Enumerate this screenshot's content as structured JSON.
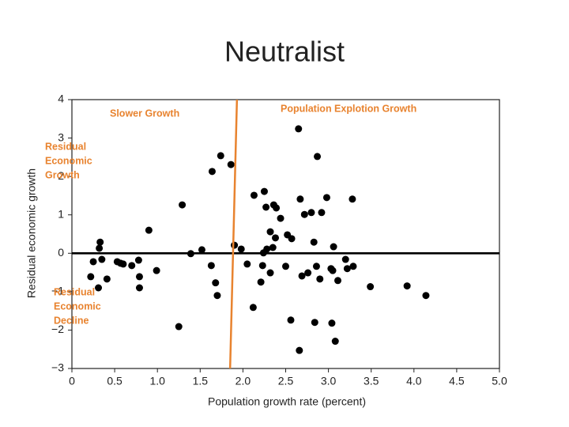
{
  "chart_data": {
    "type": "scatter",
    "title": "Neutralist",
    "x_label": "Population growth rate (percent)",
    "y_label": "Residual economic growth",
    "xlim": [
      0,
      5
    ],
    "ylim": [
      -3,
      4
    ],
    "xticks": [
      0,
      0.5,
      {
        "value": 1,
        "label": "1.0"
      },
      1.5,
      {
        "value": 2,
        "label": "2.0"
      },
      2.5,
      {
        "value": 3,
        "label": "3.0"
      },
      3.5,
      {
        "value": 4,
        "label": "4.0"
      },
      4.5,
      {
        "value": 5,
        "label": "5.0"
      }
    ],
    "yticks": [
      {
        "value": -3,
        "label": "−3"
      },
      {
        "value": -2,
        "label": "−2"
      },
      {
        "value": -1,
        "label": "−1"
      },
      0,
      1,
      2,
      3,
      4
    ],
    "zero_line": true,
    "series": [
      {
        "color": "#000000",
        "x": [
          0.25,
          0.22,
          0.32,
          0.33,
          0.35,
          0.31,
          0.41,
          0.53,
          0.57,
          0.6,
          0.7,
          0.78,
          0.79,
          0.79,
          0.9,
          0.99,
          1.29,
          1.25,
          1.39,
          1.52,
          1.63,
          1.68,
          1.7,
          1.64,
          1.74,
          1.86,
          1.9,
          1.98,
          2.05,
          2.12,
          2.13,
          2.21,
          2.24,
          2.25,
          2.27,
          2.23,
          2.28,
          2.32,
          2.32,
          2.36,
          2.39,
          2.38,
          2.35,
          2.44,
          2.5,
          2.52,
          2.57,
          2.56,
          2.65,
          2.67,
          2.66,
          2.72,
          2.69,
          2.76,
          2.8,
          2.83,
          2.84,
          2.86,
          2.87,
          2.9,
          2.92,
          2.98,
          3.03,
          3.04,
          3.06,
          3.05,
          3.08,
          3.11,
          3.2,
          3.22,
          3.29,
          3.28,
          3.49,
          3.92,
          4.14
        ],
        "values": [
          -0.22,
          -0.61,
          0.13,
          0.29,
          -0.16,
          -0.9,
          -0.67,
          -0.22,
          -0.26,
          -0.28,
          -0.32,
          -0.18,
          -0.61,
          -0.9,
          0.6,
          -0.45,
          1.26,
          -1.91,
          -0.01,
          0.09,
          -0.32,
          -0.77,
          -1.1,
          2.13,
          2.54,
          2.31,
          0.21,
          0.11,
          -0.28,
          -1.41,
          1.51,
          -0.75,
          0.01,
          1.61,
          1.2,
          -0.32,
          0.11,
          -0.51,
          0.56,
          1.26,
          1.18,
          0.4,
          0.15,
          0.91,
          -0.34,
          0.48,
          0.38,
          -1.74,
          3.24,
          1.41,
          -2.53,
          1.01,
          -0.59,
          -0.51,
          1.06,
          0.29,
          -1.8,
          -0.34,
          2.52,
          -0.67,
          1.06,
          1.45,
          -0.4,
          -1.82,
          0.17,
          -0.45,
          -2.29,
          -0.71,
          -0.16,
          -0.4,
          -0.34,
          1.41,
          -0.87,
          -0.85,
          -1.1
        ]
      }
    ],
    "divider": {
      "x": [
        1.85,
        1.93
      ],
      "y": [
        -3,
        4
      ],
      "color": "#e8832f"
    },
    "annotations": [
      {
        "lines": [
          "Slower Growth"
        ],
        "color": "#e8832f"
      },
      {
        "lines": [
          "Population Explotion Growth"
        ],
        "color": "#e8832f"
      },
      {
        "lines": [
          "Residual",
          "Economic",
          "Growth"
        ],
        "color": "#e8832f"
      },
      {
        "lines": [
          "Residual",
          "Economic",
          "Decline"
        ],
        "color": "#e8832f"
      }
    ]
  }
}
